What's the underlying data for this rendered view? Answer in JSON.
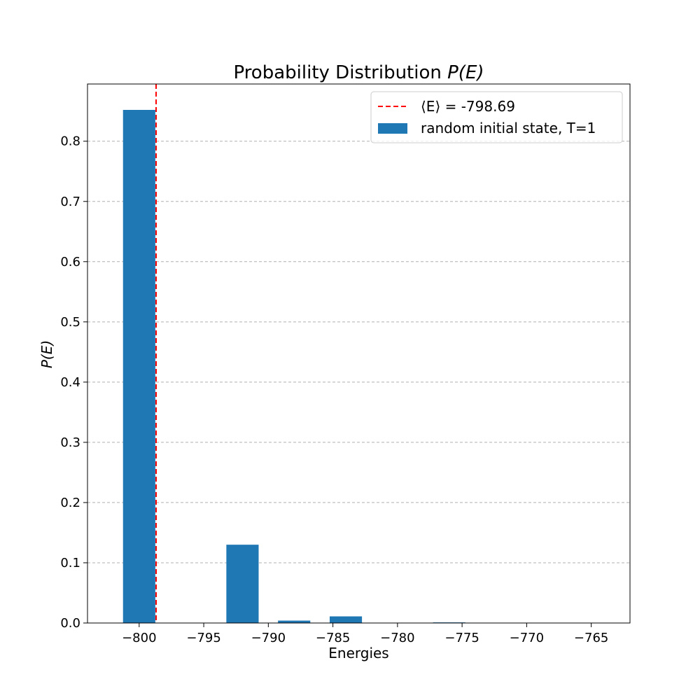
{
  "chart_data": {
    "type": "bar",
    "title_prefix": "Probability Distribution ",
    "title_math": "P(E)",
    "xlabel": "Energies",
    "ylabel": "P(E)",
    "xlim": [
      -804,
      -762
    ],
    "ylim": [
      0,
      0.895
    ],
    "x_ticks": [
      -800,
      -795,
      -790,
      -785,
      -780,
      -775,
      -770,
      -765
    ],
    "x_tick_labels": [
      "−800",
      "−795",
      "−790",
      "−785",
      "−780",
      "−775",
      "−770",
      "−765"
    ],
    "y_ticks": [
      0.0,
      0.1,
      0.2,
      0.3,
      0.4,
      0.5,
      0.6,
      0.7,
      0.8
    ],
    "y_tick_labels": [
      "0.0",
      "0.1",
      "0.2",
      "0.3",
      "0.4",
      "0.5",
      "0.6",
      "0.7",
      "0.8"
    ],
    "grid": "y-dashed",
    "bar_width": 2.5,
    "series": [
      {
        "name": "random initial state, T=1",
        "color": "#1f77b4",
        "x": [
          -800,
          -792,
          -788,
          -784,
          -776
        ],
        "values": [
          0.852,
          0.13,
          0.004,
          0.011,
          0.001
        ]
      }
    ],
    "mean_line": {
      "x": -798.69,
      "color": "#ff0000",
      "label": "⟨E⟩ = -798.69"
    },
    "legend_position": "top-right"
  }
}
